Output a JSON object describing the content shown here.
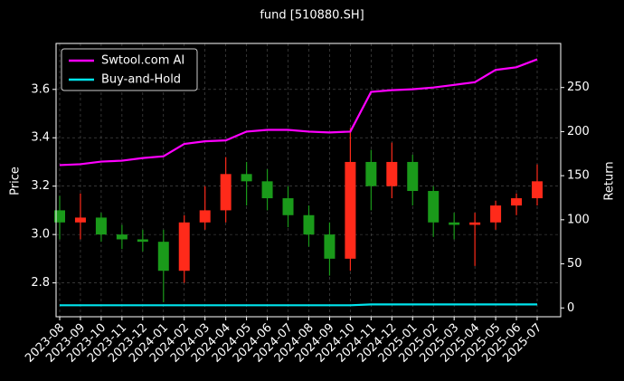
{
  "chart_data": {
    "type": "candlestick",
    "title": "fund [510880.SH]",
    "y_label": "Price",
    "y2_label": "Return",
    "x": [
      "2023-08",
      "2023-09",
      "2023-10",
      "2023-11",
      "2023-12",
      "2024-01",
      "2024-02",
      "2024-03",
      "2024-04",
      "2024-05",
      "2024-06",
      "2024-07",
      "2024-08",
      "2024-09",
      "2024-10",
      "2024-11",
      "2024-12",
      "2025-01",
      "2025-02",
      "2025-03",
      "2025-04",
      "2025-05",
      "2025-06",
      "2025-07"
    ],
    "open": [
      3.1,
      3.05,
      3.07,
      3.0,
      2.98,
      2.97,
      2.85,
      3.05,
      3.1,
      3.25,
      3.22,
      3.15,
      3.08,
      3.0,
      2.9,
      3.3,
      3.2,
      3.3,
      3.18,
      3.05,
      3.04,
      3.05,
      3.12,
      3.15
    ],
    "high": [
      3.16,
      3.17,
      3.09,
      3.04,
      3.02,
      3.02,
      3.08,
      3.2,
      3.32,
      3.3,
      3.27,
      3.2,
      3.12,
      3.05,
      3.44,
      3.35,
      3.38,
      3.33,
      3.2,
      3.09,
      3.09,
      3.14,
      3.17,
      3.29
    ],
    "low": [
      2.98,
      2.98,
      2.97,
      2.94,
      2.93,
      2.72,
      2.8,
      3.02,
      3.05,
      3.12,
      3.1,
      3.03,
      2.95,
      2.83,
      2.85,
      3.1,
      3.15,
      3.12,
      2.99,
      2.98,
      2.87,
      3.02,
      3.08,
      3.12
    ],
    "close": [
      3.05,
      3.07,
      3.0,
      2.98,
      2.97,
      2.85,
      3.05,
      3.1,
      3.25,
      3.22,
      3.15,
      3.08,
      3.0,
      2.9,
      3.3,
      3.2,
      3.3,
      3.18,
      3.05,
      3.04,
      3.05,
      3.12,
      3.15,
      3.22
    ],
    "up_color": "#ff2a1a",
    "down_color": "#1a9a1a",
    "series": [
      {
        "name": "Swtool.com AI",
        "color": "#ff00ff",
        "axis": "y2",
        "values": [
          162,
          163,
          166,
          167,
          170,
          172,
          186,
          189,
          190,
          200,
          202,
          202,
          200,
          199,
          200,
          245,
          247,
          248,
          250,
          253,
          256,
          270,
          273,
          282
        ]
      },
      {
        "name": "Buy-and-Hold",
        "color": "#00e5ee",
        "axis": "y2",
        "values": [
          3,
          3,
          3,
          3,
          3,
          3,
          3,
          3,
          3,
          3,
          3,
          3,
          3,
          3,
          3,
          4,
          4,
          4,
          4,
          4,
          4,
          4,
          4,
          4
        ]
      }
    ],
    "ylim": [
      2.66,
      3.79
    ],
    "yticks": [
      2.8,
      {
        "value": 3.0,
        "label": "3.0"
      },
      3.2,
      3.4,
      3.6
    ],
    "y2lim": [
      -10,
      300
    ],
    "y2ticks": [
      0,
      50,
      100,
      150,
      200,
      250
    ],
    "grid": true,
    "legend": "upper left"
  }
}
